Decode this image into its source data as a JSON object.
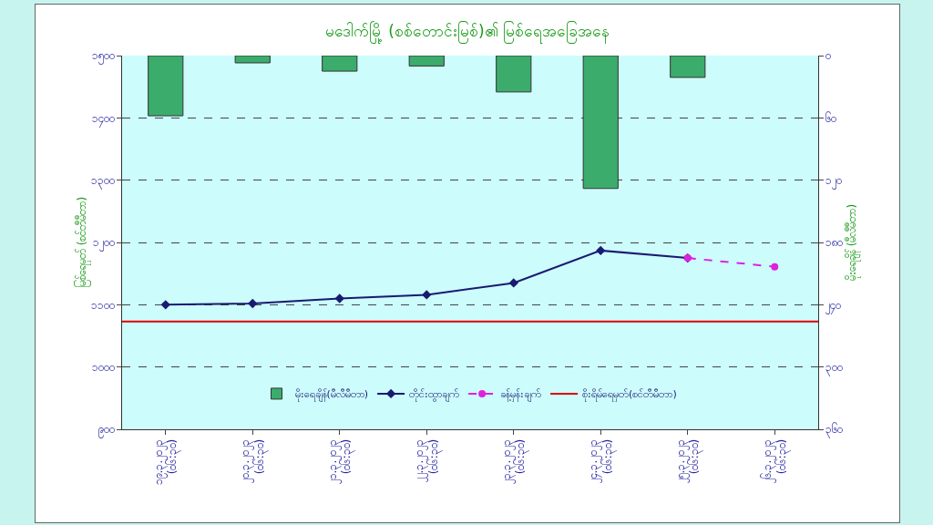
{
  "chart_data": {
    "type": "line",
    "title": "မဒေါက်မြို့ (စစ်တောင်းမြစ်)၏ မြစ်ရေအခြေအနေ",
    "ylabel": "မြစ်ရေမှတ် (စင်တီမီတာ)",
    "y2label": "မိုးရေချိန် (မီလီမီတာ)",
    "categories": [
      "၁၉.၃.၂၀၂၃\n(၀၆:၃၀)",
      "၂၀.၃.၂၀၂၃\n(၀၆:၃၀)",
      "၂၁.၃.၂၀၂၃\n(၀၆:၃၀)",
      "၂၂.၃.၂၀၂၃\n(၀၆:၃၀)",
      "၂၃.၃.၂၀၂၃\n(၀၆:၃၀)",
      "၂၄.၃.၂၀၂၃\n(၀၆:၃၀)",
      "၂၅.၃.၂၀၂၃\n(၀၆:၃၀)",
      "၂၆.၃.၂၀၂၃\n(၀၆:၃၀)"
    ],
    "series": [
      {
        "name": "မိုးရေချိန်(မီလီမီတာ)",
        "type": "bar",
        "axis": "y2",
        "color": "#3cac6c",
        "values": [
          58,
          7,
          15,
          10,
          35,
          128,
          21,
          null
        ]
      },
      {
        "name": "တိုင်းထွာချက်",
        "color": "#1a1a70",
        "marker": "diamond",
        "line_style": "solid",
        "values": [
          1100,
          1102,
          1110,
          1116,
          1135,
          1187,
          1175,
          null
        ]
      },
      {
        "name": "ခန့်မှန်းချက်",
        "color": "#e020e0",
        "marker": "circle",
        "line_style": "dashed",
        "values": [
          null,
          null,
          null,
          null,
          null,
          null,
          1175,
          1161
        ]
      }
    ],
    "ref_lines": [
      {
        "axis": "y",
        "value": 1073,
        "label": "စိုးရိမ်ရေမှတ်(စင်တီမီတာ)",
        "color": "#e00000",
        "line_style": "solid"
      }
    ],
    "ylim": [
      900,
      1500
    ],
    "yticks": [
      {
        "value": 900,
        "label": "၉၀၀"
      },
      {
        "value": 1000,
        "label": "၁၀၀၀"
      },
      {
        "value": 1100,
        "label": "၁၁၀၀"
      },
      {
        "value": 1200,
        "label": "၁၂၀၀"
      },
      {
        "value": 1300,
        "label": "၁၃၀၀"
      },
      {
        "value": 1400,
        "label": "၁၄၀၀"
      },
      {
        "value": 1500,
        "label": "၁၅၀၀"
      }
    ],
    "y2lim": [
      360,
      0
    ],
    "y2ticks": [
      {
        "value": 0,
        "label": "၀"
      },
      {
        "value": 60,
        "label": "၆၀"
      },
      {
        "value": 120,
        "label": "၁၂၀"
      },
      {
        "value": 180,
        "label": "၁၈၀"
      },
      {
        "value": 240,
        "label": "၂၄၀"
      },
      {
        "value": 300,
        "label": "၃၀၀"
      },
      {
        "value": 360,
        "label": "၃၆၀"
      }
    ],
    "grid": "y",
    "legend": "bottom"
  }
}
